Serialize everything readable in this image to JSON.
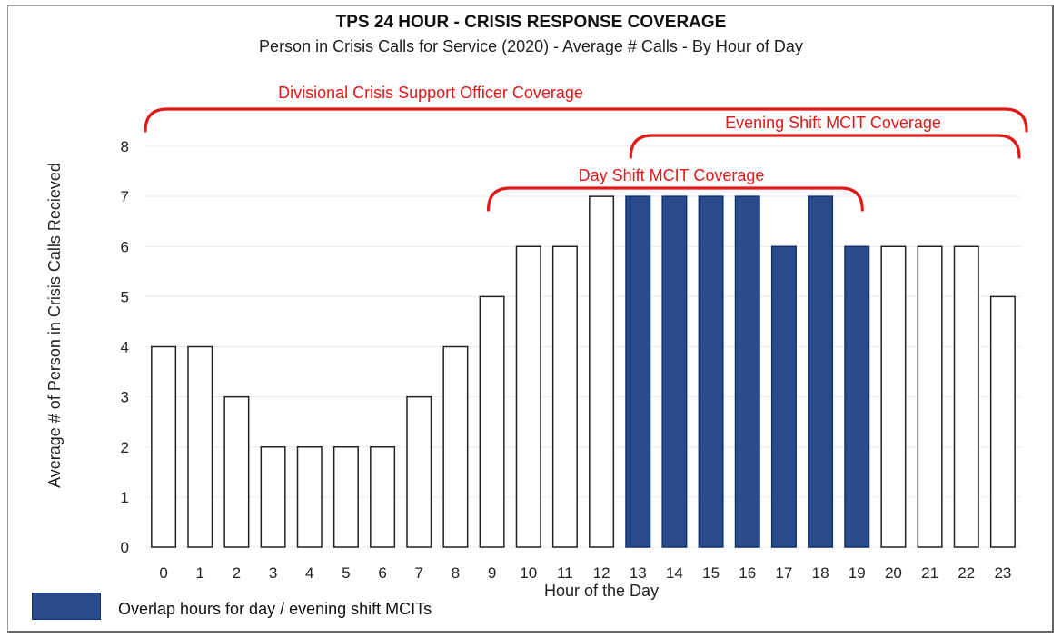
{
  "chart_data": {
    "type": "bar",
    "title": "TPS 24 HOUR - CRISIS RESPONSE COVERAGE",
    "subtitle": "Person in Crisis Calls for Service (2020) - Average # Calls - By Hour of Day",
    "xlabel": "Hour of the Day",
    "ylabel": "Average # of Person in Crisis Calls Recieved",
    "ylim": [
      0,
      8
    ],
    "yticks": [
      "0",
      "1",
      "2",
      "3",
      "4",
      "5",
      "6",
      "7",
      "8"
    ],
    "categories": [
      "0",
      "1",
      "2",
      "3",
      "4",
      "5",
      "6",
      "7",
      "8",
      "9",
      "10",
      "11",
      "12",
      "13",
      "14",
      "15",
      "16",
      "17",
      "18",
      "19",
      "20",
      "21",
      "22",
      "23"
    ],
    "values": [
      4,
      4,
      3,
      2,
      2,
      2,
      2,
      3,
      4,
      5,
      6,
      6,
      7,
      7,
      7,
      7,
      7,
      6,
      7,
      6,
      6,
      6,
      6,
      5
    ],
    "highlight_categories": [
      "13",
      "14",
      "15",
      "16",
      "17",
      "18",
      "19"
    ],
    "colors": {
      "highlight": "#2a4a8e",
      "default": "#ffffff",
      "bracket": "#e01919",
      "bar_stroke": "#222222"
    },
    "grid": true,
    "legend": [
      {
        "label": "Overlap hours for day / evening shift MCITs",
        "color": "#2a4a8e"
      }
    ],
    "annotations": [
      {
        "text": "Divisional Crisis Support Officer Coverage",
        "from": "0",
        "to": "23"
      },
      {
        "text": "Evening Shift MCIT Coverage",
        "from": "13",
        "to": "23"
      },
      {
        "text": "Day Shift MCIT Coverage",
        "from": "9",
        "to": "19"
      }
    ]
  }
}
